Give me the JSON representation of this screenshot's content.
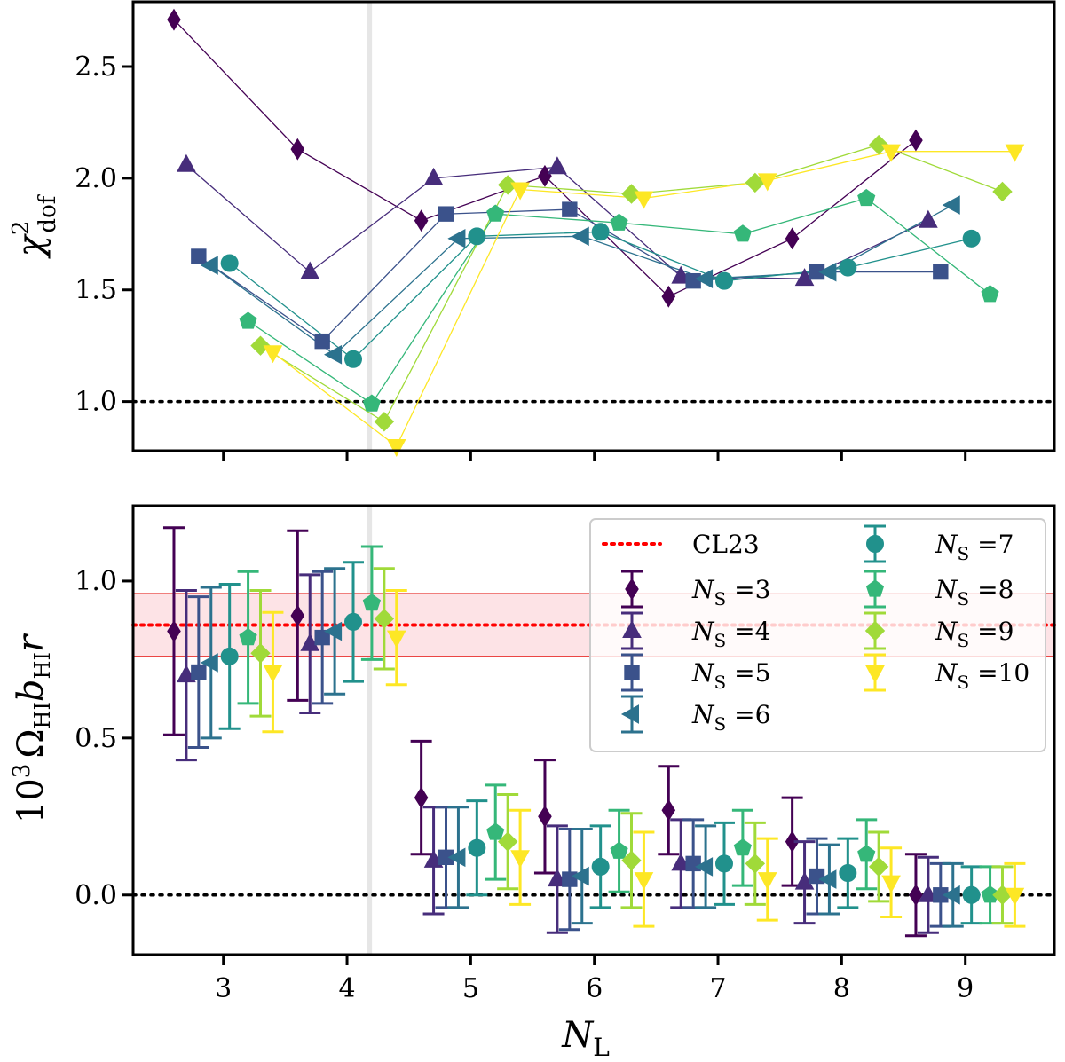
{
  "chart_data": [
    {
      "type": "line",
      "panel": "top",
      "ylabel": "χ²_dof",
      "ylabel_main": "χ",
      "ylabel_sup": "2",
      "ylabel_sub": "dof",
      "xlim": [
        2.27,
        9.72
      ],
      "ylim": [
        0.78,
        2.79
      ],
      "yticks": [
        1.0,
        1.5,
        2.0,
        2.5
      ],
      "ytick_labels": [
        "1.0",
        "1.5",
        "2.0",
        "2.5"
      ],
      "reference_hline": 1.0,
      "vline_x": 4.18,
      "series": [
        {
          "name": "N_S =3",
          "marker": "diamond",
          "color": "#440154",
          "x": [
            2.6,
            3.6,
            4.6,
            5.6,
            6.6,
            7.6,
            8.6
          ],
          "y": [
            2.71,
            2.13,
            1.81,
            2.01,
            1.47,
            1.73,
            2.17
          ]
        },
        {
          "name": "N_S =4",
          "marker": "triangle-up",
          "color": "#472d7b",
          "x": [
            2.7,
            3.7,
            4.7,
            5.7,
            6.7,
            7.7,
            8.7
          ],
          "y": [
            2.06,
            1.58,
            2.0,
            2.05,
            1.56,
            1.55,
            1.81
          ]
        },
        {
          "name": "N_S =5",
          "marker": "square",
          "color": "#3b528b",
          "x": [
            2.8,
            3.8,
            4.8,
            5.8,
            6.8,
            7.8,
            8.8
          ],
          "y": [
            1.65,
            1.27,
            1.84,
            1.86,
            1.54,
            1.58,
            1.58
          ]
        },
        {
          "name": "N_S =6",
          "marker": "triangle-left",
          "color": "#2c728e",
          "x": [
            2.9,
            3.9,
            4.9,
            5.9,
            6.9,
            7.9,
            8.9
          ],
          "y": [
            1.61,
            1.21,
            1.73,
            1.74,
            1.55,
            1.58,
            1.88
          ]
        },
        {
          "name": "N_S =7",
          "marker": "circle",
          "color": "#21918c",
          "x": [
            3.05,
            4.05,
            5.05,
            6.05,
            7.05,
            8.05,
            9.05
          ],
          "y": [
            1.62,
            1.19,
            1.74,
            1.76,
            1.54,
            1.6,
            1.73
          ]
        },
        {
          "name": "N_S =8",
          "marker": "pentagon",
          "color": "#35b779",
          "x": [
            3.2,
            4.2,
            5.2,
            6.2,
            7.2,
            8.2,
            9.2
          ],
          "y": [
            1.36,
            0.99,
            1.84,
            1.8,
            1.75,
            1.91,
            1.48
          ]
        },
        {
          "name": "N_S =9",
          "marker": "diamond-wide",
          "color": "#a0da39",
          "x": [
            3.3,
            4.3,
            5.3,
            6.3,
            7.3,
            8.3,
            9.3
          ],
          "y": [
            1.25,
            0.91,
            1.97,
            1.93,
            1.98,
            2.15,
            1.94
          ]
        },
        {
          "name": "N_S =10",
          "marker": "triangle-down",
          "color": "#fde725",
          "x": [
            3.4,
            4.4,
            5.4,
            6.4,
            7.4,
            8.4,
            9.4
          ],
          "y": [
            1.22,
            0.8,
            1.95,
            1.91,
            1.99,
            2.12,
            2.12
          ]
        }
      ]
    },
    {
      "type": "scatter",
      "panel": "bottom",
      "xlabel": "N_L",
      "xlabel_main": "N",
      "xlabel_sub": "L",
      "ylabel": "10³ Ω_HI b_HI r",
      "ylabel_parts": {
        "ten": "10",
        "exp": "3",
        "omega": "Ω",
        "omega_sub": "HI",
        "b": "b",
        "b_sub": "HI",
        "r": "r"
      },
      "xlim": [
        2.27,
        9.72
      ],
      "ylim": [
        -0.19,
        1.24
      ],
      "xticks": [
        3,
        4,
        5,
        6,
        7,
        8,
        9
      ],
      "xtick_labels": [
        "3",
        "4",
        "5",
        "6",
        "7",
        "8",
        "9"
      ],
      "yticks": [
        0.0,
        0.5,
        1.0
      ],
      "ytick_labels": [
        "0.0",
        "0.5",
        "1.0"
      ],
      "reference_hline": 0.0,
      "vline_x": 4.18,
      "CL23": {
        "label": "CL23",
        "value": 0.86,
        "lower": 0.76,
        "upper": 0.96
      },
      "legend_position": "top-right",
      "series": [
        {
          "name": "N_S =3",
          "marker": "diamond",
          "color": "#440154",
          "x": [
            2.6,
            3.6,
            4.6,
            5.6,
            6.6,
            7.6,
            8.6
          ],
          "y": [
            0.84,
            0.89,
            0.31,
            0.25,
            0.27,
            0.17,
            0.0
          ],
          "err": [
            0.33,
            0.27,
            0.18,
            0.18,
            0.14,
            0.14,
            0.13
          ]
        },
        {
          "name": "N_S =4",
          "marker": "triangle-up",
          "color": "#472d7b",
          "x": [
            2.7,
            3.7,
            4.7,
            5.7,
            6.7,
            7.7,
            8.7
          ],
          "y": [
            0.7,
            0.8,
            0.11,
            0.05,
            0.1,
            0.04,
            0.0
          ],
          "err": [
            0.27,
            0.22,
            0.17,
            0.17,
            0.14,
            0.13,
            0.12
          ]
        },
        {
          "name": "N_S =5",
          "marker": "square",
          "color": "#3b528b",
          "x": [
            2.8,
            3.8,
            4.8,
            5.8,
            6.8,
            7.8,
            8.8
          ],
          "y": [
            0.71,
            0.82,
            0.12,
            0.05,
            0.1,
            0.06,
            0.0
          ],
          "err": [
            0.24,
            0.21,
            0.16,
            0.16,
            0.14,
            0.12,
            0.1
          ]
        },
        {
          "name": "N_S =6",
          "marker": "triangle-left",
          "color": "#2c728e",
          "x": [
            2.9,
            3.9,
            4.9,
            5.9,
            6.9,
            7.9,
            8.9
          ],
          "y": [
            0.74,
            0.84,
            0.12,
            0.06,
            0.09,
            0.05,
            0.0
          ],
          "err": [
            0.24,
            0.2,
            0.16,
            0.15,
            0.13,
            0.11,
            0.1
          ]
        },
        {
          "name": "N_S =7",
          "marker": "circle",
          "color": "#21918c",
          "x": [
            3.05,
            4.05,
            5.05,
            6.05,
            7.05,
            8.05,
            9.05
          ],
          "y": [
            0.76,
            0.87,
            0.15,
            0.09,
            0.1,
            0.07,
            0.0
          ],
          "err": [
            0.23,
            0.19,
            0.15,
            0.13,
            0.13,
            0.11,
            0.09
          ]
        },
        {
          "name": "N_S =8",
          "marker": "pentagon",
          "color": "#35b779",
          "x": [
            3.2,
            4.2,
            5.2,
            6.2,
            7.2,
            8.2,
            9.2
          ],
          "y": [
            0.82,
            0.93,
            0.2,
            0.14,
            0.15,
            0.13,
            0.0
          ],
          "err": [
            0.21,
            0.18,
            0.15,
            0.13,
            0.12,
            0.11,
            0.09
          ]
        },
        {
          "name": "N_S =9",
          "marker": "diamond-wide",
          "color": "#a0da39",
          "x": [
            3.3,
            4.3,
            5.3,
            6.3,
            7.3,
            8.3,
            9.3
          ],
          "y": [
            0.77,
            0.88,
            0.17,
            0.11,
            0.1,
            0.09,
            0.0
          ],
          "err": [
            0.2,
            0.16,
            0.15,
            0.15,
            0.13,
            0.11,
            0.09
          ]
        },
        {
          "name": "N_S =10",
          "marker": "triangle-down",
          "color": "#fde725",
          "x": [
            3.4,
            4.4,
            5.4,
            6.4,
            7.4,
            8.4,
            9.4
          ],
          "y": [
            0.71,
            0.82,
            0.12,
            0.05,
            0.05,
            0.04,
            0.0
          ],
          "err": [
            0.19,
            0.15,
            0.15,
            0.15,
            0.13,
            0.11,
            0.1
          ]
        }
      ]
    }
  ]
}
